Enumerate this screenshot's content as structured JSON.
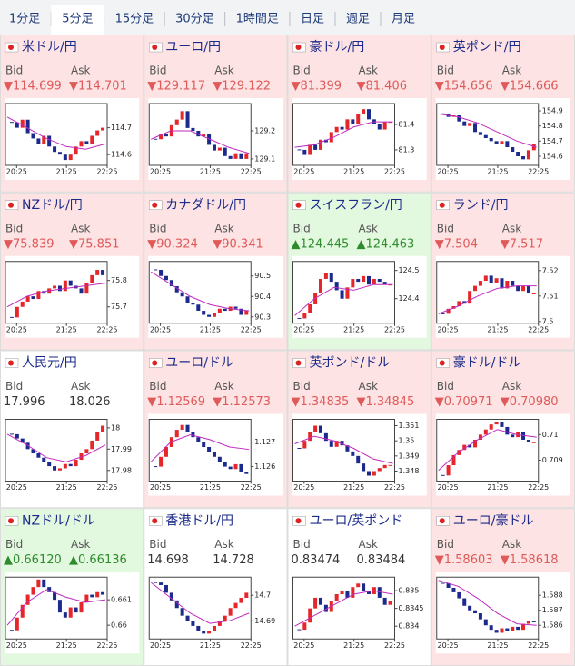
{
  "tabs": [
    "1分足",
    "5分足",
    "15分足",
    "30分足",
    "1時間足",
    "日足",
    "週足",
    "月足"
  ],
  "active_tab": 1,
  "bid_label": "Bid",
  "ask_label": "Ask",
  "x_labels": [
    "20:25",
    "21:25",
    "22:25"
  ],
  "colors": {
    "up": "#e5262b",
    "down": "#1c2a8e",
    "ma": "#c02ac0"
  },
  "tiles": [
    {
      "name": "米ドル/円",
      "bid": "▼114.699",
      "ask": "▼114.701",
      "text_color": "#e05a5a",
      "background": "#fde3e3",
      "chart": {
        "type": "candlestick",
        "close": [
          114.72,
          114.7,
          114.73,
          114.68,
          114.66,
          114.64,
          114.67,
          114.63,
          114.61,
          114.6,
          114.58,
          114.6,
          114.63,
          114.65,
          114.64,
          114.67,
          114.69,
          114.7
        ],
        "ma": [
          114.74,
          114.7,
          114.66,
          114.63,
          114.62,
          114.64
        ],
        "ylim": [
          114.56,
          114.79
        ],
        "yticks": [
          114.7,
          114.6
        ]
      }
    },
    {
      "name": "ユーロ/円",
      "bid": "▼129.117",
      "ask": "▼129.122",
      "text_color": "#e05a5a",
      "background": "#fde3e3",
      "chart": {
        "type": "candlestick",
        "close": [
          129.17,
          129.19,
          129.18,
          129.22,
          129.24,
          129.27,
          129.21,
          129.2,
          129.18,
          129.19,
          129.15,
          129.13,
          129.14,
          129.11,
          129.1,
          129.12,
          129.1,
          129.12
        ],
        "ma": [
          129.17,
          129.2,
          129.2,
          129.17,
          129.14,
          129.12
        ],
        "ylim": [
          129.077,
          129.297
        ],
        "yticks": [
          129.2,
          129.1
        ]
      }
    },
    {
      "name": "豪ドル/円",
      "bid": "▼81.399",
      "ask": "▼81.406",
      "text_color": "#e05a5a",
      "background": "#fde3e3",
      "chart": {
        "type": "candlestick",
        "close": [
          81.3,
          81.28,
          81.32,
          81.3,
          81.34,
          81.33,
          81.37,
          81.39,
          81.38,
          81.42,
          81.4,
          81.44,
          81.46,
          81.42,
          81.4,
          81.38,
          81.41,
          81.41
        ],
        "ma": [
          81.31,
          81.32,
          81.35,
          81.39,
          81.41,
          81.41
        ],
        "ylim": [
          81.239,
          81.482
        ],
        "yticks": [
          81.4,
          81.3
        ]
      }
    },
    {
      "name": "英ポンド/円",
      "bid": "▼154.656",
      "ask": "▼154.666",
      "text_color": "#e05a5a",
      "background": "#fde3e3",
      "chart": {
        "type": "candlestick",
        "close": [
          154.88,
          154.86,
          154.87,
          154.83,
          154.8,
          154.82,
          154.76,
          154.74,
          154.72,
          154.7,
          154.68,
          154.7,
          154.66,
          154.63,
          154.6,
          154.58,
          154.64,
          154.68
        ],
        "ma": [
          154.88,
          154.86,
          154.82,
          154.76,
          154.7,
          154.66
        ],
        "ylim": [
          154.54,
          154.948
        ],
        "yticks": [
          154.9,
          154.8,
          154.7,
          154.6
        ]
      }
    },
    {
      "name": "NZドル/円",
      "bid": "▼75.839",
      "ask": "▼75.851",
      "text_color": "#e05a5a",
      "background": "#fde3e3",
      "chart": {
        "type": "candlestick",
        "close": [
          75.66,
          75.7,
          75.72,
          75.74,
          75.73,
          75.76,
          75.75,
          75.77,
          75.78,
          75.76,
          75.8,
          75.78,
          75.77,
          75.75,
          75.79,
          75.82,
          75.84,
          75.82
        ],
        "ma": [
          75.7,
          75.74,
          75.76,
          75.77,
          75.78,
          75.79
        ],
        "ylim": [
          75.638,
          75.872
        ],
        "yticks": [
          75.8,
          75.7
        ]
      }
    },
    {
      "name": "カナダドル/円",
      "bid": "▼90.324",
      "ask": "▼90.341",
      "text_color": "#e05a5a",
      "background": "#fde3e3",
      "chart": {
        "type": "candlestick",
        "close": [
          90.53,
          90.5,
          90.48,
          90.45,
          90.42,
          90.4,
          90.37,
          90.36,
          90.33,
          90.31,
          90.3,
          90.32,
          90.34,
          90.33,
          90.35,
          90.34,
          90.31,
          90.33
        ],
        "ma": [
          90.52,
          90.46,
          90.4,
          90.36,
          90.34,
          90.33
        ],
        "ylim": [
          90.269,
          90.571
        ],
        "yticks": [
          90.5,
          90.4,
          90.3
        ]
      }
    },
    {
      "name": "スイスフラン/円",
      "bid": "▲124.445",
      "ask": "▲124.463",
      "text_color": "#2e8b2e",
      "background": "#e3f9df",
      "chart": {
        "type": "candlestick",
        "close": [
          124.33,
          124.35,
          124.38,
          124.42,
          124.47,
          124.49,
          124.46,
          124.43,
          124.4,
          124.44,
          124.47,
          124.46,
          124.48,
          124.45,
          124.47,
          124.46,
          124.45,
          124.45
        ],
        "ma": [
          124.34,
          124.4,
          124.44,
          124.43,
          124.45,
          124.45
        ],
        "ylim": [
          124.313,
          124.532
        ],
        "yticks": [
          124.5,
          124.4
        ]
      }
    },
    {
      "name": "ランド/円",
      "bid": "▼7.504",
      "ask": "▼7.517",
      "text_color": "#e05a5a",
      "background": "#fde3e3",
      "chart": {
        "type": "candlestick",
        "close": [
          7.503,
          7.505,
          7.506,
          7.508,
          7.507,
          7.512,
          7.514,
          7.516,
          7.518,
          7.515,
          7.517,
          7.513,
          7.516,
          7.514,
          7.512,
          7.514,
          7.511,
          7.511
        ],
        "ma": [
          7.503,
          7.506,
          7.51,
          7.513,
          7.514,
          7.514
        ],
        "ylim": [
          7.4993,
          7.5236
        ],
        "yticks": [
          7.52,
          7.51,
          7.5
        ]
      }
    },
    {
      "name": "人民元/円",
      "bid": "17.996",
      "ask": "18.026",
      "text_color": "#333333",
      "background": "#ffffff",
      "chart": {
        "type": "candlestick",
        "close": [
          17.997,
          17.995,
          17.993,
          17.99,
          17.988,
          17.986,
          17.984,
          17.982,
          17.98,
          17.981,
          17.983,
          17.982,
          17.985,
          17.988,
          17.99,
          17.994,
          17.998,
          18.001
        ],
        "ma": [
          17.997,
          17.992,
          17.986,
          17.984,
          17.987,
          17.992
        ],
        "ylim": [
          17.975,
          18.004
        ],
        "yticks": [
          18,
          17.99,
          17.98
        ]
      }
    },
    {
      "name": "ユーロ/ドル",
      "bid": "▼1.12569",
      "ask": "▼1.12573",
      "text_color": "#e05a5a",
      "background": "#fde3e3",
      "chart": {
        "type": "candlestick",
        "close": [
          1.126,
          1.1264,
          1.1268,
          1.1272,
          1.1275,
          1.1277,
          1.1274,
          1.1272,
          1.127,
          1.1268,
          1.1266,
          1.1264,
          1.1262,
          1.126,
          1.1259,
          1.1261,
          1.1258,
          1.1257
        ],
        "ma": [
          1.1262,
          1.127,
          1.1273,
          1.1271,
          1.1268,
          1.1267
        ],
        "ylim": [
          1.12541,
          1.12793
        ],
        "yticks": [
          1.127,
          1.126
        ]
      }
    },
    {
      "name": "英ポンド/ドル",
      "bid": "▼1.34835",
      "ask": "▼1.34845",
      "text_color": "#e05a5a",
      "background": "#fde3e3",
      "chart": {
        "type": "candlestick",
        "close": [
          1.3495,
          1.35,
          1.3506,
          1.351,
          1.3505,
          1.35,
          1.3496,
          1.35,
          1.3497,
          1.3493,
          1.349,
          1.3485,
          1.348,
          1.3477,
          1.348,
          1.3482,
          1.3484,
          1.3484
        ],
        "ma": [
          1.3498,
          1.3503,
          1.35,
          1.3495,
          1.3488,
          1.3485
        ],
        "ylim": [
          1.34734,
          1.35142
        ],
        "yticks": [
          1.351,
          1.35,
          1.349,
          1.348
        ]
      }
    },
    {
      "name": "豪ドル/ドル",
      "bid": "▼0.70971",
      "ask": "▼0.70980",
      "text_color": "#e05a5a",
      "background": "#fde3e3",
      "chart": {
        "type": "candlestick",
        "close": [
          0.7084,
          0.7088,
          0.7092,
          0.7094,
          0.7096,
          0.7095,
          0.7098,
          0.71,
          0.7102,
          0.7104,
          0.7105,
          0.7103,
          0.71,
          0.7099,
          0.7101,
          0.7098,
          0.7097,
          0.7097
        ],
        "ma": [
          0.7086,
          0.7093,
          0.7098,
          0.7102,
          0.71,
          0.7099
        ],
        "ylim": [
          0.70818,
          0.7106
        ],
        "yticks": [
          0.71,
          0.709
        ]
      }
    },
    {
      "name": "NZドル/ドル",
      "bid": "▲0.66120",
      "ask": "▲0.66136",
      "text_color": "#2e8b2e",
      "background": "#e3f9df",
      "chart": {
        "type": "candlestick",
        "close": [
          0.6598,
          0.6603,
          0.6608,
          0.6612,
          0.6615,
          0.6618,
          0.6615,
          0.6613,
          0.661,
          0.6605,
          0.6603,
          0.6607,
          0.6605,
          0.6609,
          0.6612,
          0.6611,
          0.6613,
          0.6612
        ],
        "ma": [
          0.66,
          0.6609,
          0.6614,
          0.6611,
          0.6609,
          0.661
        ],
        "ylim": [
          0.65946,
          0.66189
        ],
        "yticks": [
          0.661,
          0.66
        ]
      }
    },
    {
      "name": "香港ドル/円",
      "bid": "14.698",
      "ask": "14.728",
      "text_color": "#333333",
      "background": "#ffffff",
      "chart": {
        "type": "candlestick",
        "close": [
          14.705,
          14.704,
          14.701,
          14.698,
          14.695,
          14.692,
          14.69,
          14.688,
          14.686,
          14.685,
          14.686,
          14.688,
          14.69,
          14.692,
          14.695,
          14.697,
          14.699,
          14.701
        ],
        "ma": [
          14.705,
          14.699,
          14.693,
          14.689,
          14.69,
          14.693
        ],
        "ylim": [
          14.6829,
          14.7071
        ],
        "yticks": [
          14.7,
          14.69
        ]
      }
    },
    {
      "name": "ユーロ/英ポンド",
      "bid": "0.83474",
      "ask": "0.83484",
      "text_color": "#333333",
      "background": "#ffffff",
      "chart": {
        "type": "candlestick",
        "close": [
          0.8339,
          0.8341,
          0.8345,
          0.8348,
          0.8346,
          0.8344,
          0.8347,
          0.8349,
          0.835,
          0.8348,
          0.8351,
          0.8352,
          0.835,
          0.8349,
          0.8351,
          0.8348,
          0.8346,
          0.8347
        ],
        "ma": [
          0.834,
          0.8343,
          0.8346,
          0.8349,
          0.835,
          0.8349
        ],
        "ylim": [
          0.83364,
          0.83538
        ],
        "yticks": [
          0.835,
          0.8345,
          0.834
        ]
      }
    },
    {
      "name": "ユーロ/豪ドル",
      "bid": "▼1.58603",
      "ask": "▼1.58618",
      "text_color": "#e05a5a",
      "background": "#fde3e3",
      "chart": {
        "type": "candlestick",
        "close": [
          1.5888,
          1.5885,
          1.5882,
          1.5878,
          1.5873,
          1.587,
          1.5868,
          1.5864,
          1.586,
          1.5857,
          1.5855,
          1.5858,
          1.5856,
          1.5859,
          1.5857,
          1.5861,
          1.5863,
          1.5862
        ],
        "ma": [
          1.589,
          1.5886,
          1.5878,
          1.5868,
          1.5861,
          1.586
        ],
        "ylim": [
          1.58509,
          1.58921
        ],
        "yticks": [
          1.588,
          1.587,
          1.586
        ]
      }
    }
  ]
}
